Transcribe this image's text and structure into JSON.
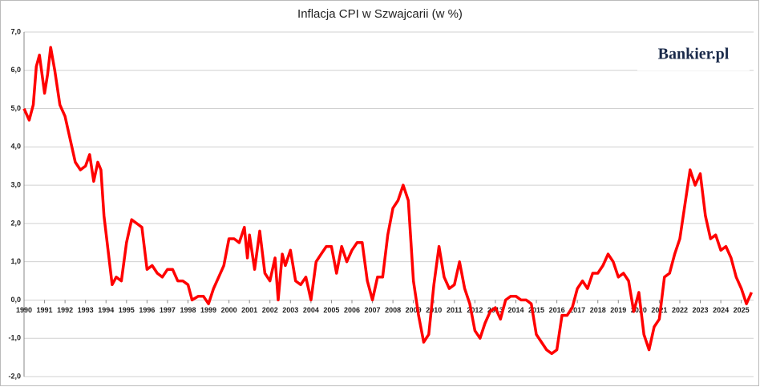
{
  "chart_data": {
    "type": "line",
    "title": "Inflacja CPI w Szwajcarii (w %)",
    "logo": "Bankier.pl",
    "x": [
      1990.0,
      1990.25,
      1990.45,
      1990.6,
      1990.75,
      1991.0,
      1991.15,
      1991.3,
      1991.5,
      1991.75,
      1992.0,
      1992.25,
      1992.5,
      1992.75,
      1993.0,
      1993.2,
      1993.4,
      1993.6,
      1993.75,
      1993.9,
      1994.1,
      1994.3,
      1994.5,
      1994.75,
      1995.0,
      1995.25,
      1995.5,
      1995.75,
      1996.0,
      1996.25,
      1996.5,
      1996.75,
      1997.0,
      1997.25,
      1997.5,
      1997.75,
      1998.0,
      1998.2,
      1998.5,
      1998.75,
      1999.0,
      1999.25,
      1999.5,
      1999.75,
      2000.0,
      2000.25,
      2000.5,
      2000.75,
      2000.9,
      2001.0,
      2001.25,
      2001.5,
      2001.75,
      2002.0,
      2002.25,
      2002.4,
      2002.6,
      2002.75,
      2003.0,
      2003.25,
      2003.5,
      2003.75,
      2004.0,
      2004.25,
      2004.5,
      2004.75,
      2005.0,
      2005.25,
      2005.5,
      2005.75,
      2006.0,
      2006.25,
      2006.5,
      2006.75,
      2007.0,
      2007.25,
      2007.5,
      2007.75,
      2008.0,
      2008.25,
      2008.5,
      2008.75,
      2009.0,
      2009.25,
      2009.5,
      2009.75,
      2010.0,
      2010.25,
      2010.5,
      2010.75,
      2011.0,
      2011.25,
      2011.5,
      2011.75,
      2012.0,
      2012.25,
      2012.5,
      2012.75,
      2013.0,
      2013.25,
      2013.5,
      2013.75,
      2014.0,
      2014.25,
      2014.5,
      2014.75,
      2015.0,
      2015.25,
      2015.5,
      2015.75,
      2016.0,
      2016.25,
      2016.5,
      2016.75,
      2017.0,
      2017.25,
      2017.5,
      2017.75,
      2018.0,
      2018.25,
      2018.5,
      2018.75,
      2019.0,
      2019.25,
      2019.5,
      2019.75,
      2020.0,
      2020.25,
      2020.5,
      2020.75,
      2021.0,
      2021.25,
      2021.5,
      2021.75,
      2022.0,
      2022.25,
      2022.5,
      2022.75,
      2023.0,
      2023.25,
      2023.5,
      2023.75,
      2024.0,
      2024.25,
      2024.5,
      2024.75,
      2025.0,
      2025.25,
      2025.5
    ],
    "series": [
      {
        "name": "CPI",
        "color": "#ff0000",
        "values": [
          5.0,
          4.7,
          5.1,
          6.1,
          6.4,
          5.4,
          5.9,
          6.6,
          6.0,
          5.1,
          4.8,
          4.2,
          3.6,
          3.4,
          3.5,
          3.8,
          3.1,
          3.6,
          3.4,
          2.2,
          1.3,
          0.4,
          0.6,
          0.5,
          1.5,
          2.1,
          2.0,
          1.9,
          0.8,
          0.9,
          0.7,
          0.6,
          0.8,
          0.8,
          0.5,
          0.5,
          0.4,
          0.0,
          0.1,
          0.1,
          -0.1,
          0.3,
          0.6,
          0.9,
          1.6,
          1.6,
          1.5,
          1.9,
          1.1,
          1.7,
          0.8,
          1.8,
          0.7,
          0.5,
          1.1,
          0.0,
          1.2,
          0.9,
          1.3,
          0.5,
          0.4,
          0.6,
          0.0,
          1.0,
          1.2,
          1.4,
          1.4,
          0.7,
          1.4,
          1.0,
          1.3,
          1.5,
          1.5,
          0.5,
          0.0,
          0.6,
          0.6,
          1.7,
          2.4,
          2.6,
          3.0,
          2.6,
          0.5,
          -0.4,
          -1.1,
          -0.9,
          0.4,
          1.4,
          0.6,
          0.3,
          0.4,
          1.0,
          0.3,
          -0.1,
          -0.8,
          -1.0,
          -0.6,
          -0.3,
          -0.2,
          -0.5,
          0.0,
          0.1,
          0.1,
          0.0,
          0.0,
          -0.1,
          -0.9,
          -1.1,
          -1.3,
          -1.4,
          -1.3,
          -0.4,
          -0.4,
          -0.2,
          0.3,
          0.5,
          0.3,
          0.7,
          0.7,
          0.9,
          1.2,
          1.0,
          0.6,
          0.7,
          0.5,
          -0.3,
          0.2,
          -0.9,
          -1.3,
          -0.7,
          -0.5,
          0.6,
          0.7,
          1.2,
          1.6,
          2.5,
          3.4,
          3.0,
          3.3,
          2.2,
          1.6,
          1.7,
          1.3,
          1.4,
          1.1,
          0.6,
          0.3,
          -0.1,
          0.2
        ]
      }
    ],
    "xlim": [
      1990,
      2025.6
    ],
    "xticks": [
      1990,
      1991,
      1992,
      1993,
      1994,
      1995,
      1996,
      1997,
      1998,
      1999,
      2000,
      2001,
      2002,
      2003,
      2004,
      2005,
      2006,
      2007,
      2008,
      2009,
      2010,
      2011,
      2012,
      2013,
      2014,
      2015,
      2016,
      2017,
      2018,
      2019,
      2020,
      2021,
      2022,
      2023,
      2024,
      2025
    ],
    "ylim": [
      -2,
      7
    ],
    "yticks": [
      {
        "value": -2,
        "label": "-2,0"
      },
      {
        "value": -1,
        "label": "-1,0"
      },
      {
        "value": 0,
        "label": "0,0"
      },
      {
        "value": 1,
        "label": "1,0"
      },
      {
        "value": 2,
        "label": "2,0"
      },
      {
        "value": 3,
        "label": "3,0"
      },
      {
        "value": 4,
        "label": "4,0"
      },
      {
        "value": 5,
        "label": "5,0"
      },
      {
        "value": 6,
        "label": "6,0"
      },
      {
        "value": 7,
        "label": "7,0"
      }
    ],
    "grid": true
  }
}
